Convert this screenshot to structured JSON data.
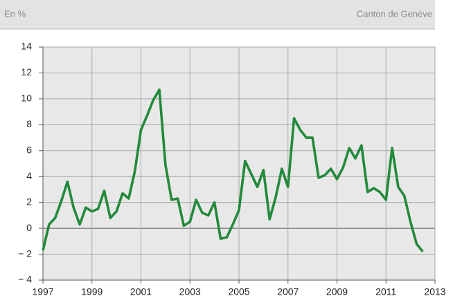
{
  "header": {
    "left": "En %",
    "right": "Canton de Genève"
  },
  "chart_data": {
    "type": "line",
    "x": [
      1997,
      1997.25,
      1997.5,
      1997.75,
      1998,
      1998.25,
      1998.5,
      1998.75,
      1999,
      1999.25,
      1999.5,
      1999.75,
      2000,
      2000.25,
      2000.5,
      2000.75,
      2001,
      2001.25,
      2001.5,
      2001.75,
      2002,
      2002.25,
      2002.5,
      2002.75,
      2003,
      2003.25,
      2003.5,
      2003.75,
      2004,
      2004.25,
      2004.5,
      2004.75,
      2005,
      2005.25,
      2005.5,
      2005.75,
      2006,
      2006.25,
      2006.5,
      2006.75,
      2007,
      2007.25,
      2007.5,
      2007.75,
      2008,
      2008.25,
      2008.5,
      2008.75,
      2009,
      2009.25,
      2009.5,
      2009.75,
      2010,
      2010.25,
      2010.5,
      2010.75,
      2011,
      2011.25,
      2011.5,
      2011.75,
      2012,
      2012.25,
      2012.5
    ],
    "series": [
      {
        "name": "Canton de Genève",
        "color": "#23893b",
        "values": [
          -1.7,
          0.3,
          0.8,
          2.1,
          3.6,
          1.6,
          0.3,
          1.6,
          1.3,
          1.5,
          2.9,
          0.8,
          1.3,
          2.7,
          2.3,
          4.4,
          7.6,
          8.7,
          9.9,
          10.7,
          4.9,
          2.2,
          2.3,
          0.2,
          0.5,
          2.2,
          1.2,
          1.0,
          2.0,
          -0.8,
          -0.7,
          0.3,
          1.4,
          5.2,
          4.2,
          3.2,
          4.5,
          0.7,
          2.4,
          4.6,
          3.2,
          8.5,
          7.6,
          7.0,
          7.0,
          3.9,
          4.1,
          4.6,
          3.8,
          4.7,
          6.2,
          5.4,
          6.4,
          2.8,
          3.1,
          2.8,
          2.2,
          6.2,
          3.2,
          2.5,
          0.5,
          -1.2,
          -1.8
        ]
      }
    ],
    "xlim": [
      1997,
      2013
    ],
    "xticks": [
      1997,
      1999,
      2001,
      2003,
      2005,
      2007,
      2009,
      2011,
      2013
    ],
    "ylim": [
      -4,
      14
    ],
    "yticks": [
      {
        "value": -4,
        "label": "− 4"
      },
      {
        "value": -2,
        "label": "− 2"
      },
      0,
      2,
      4,
      6,
      8,
      10,
      12,
      14
    ],
    "grid": true
  }
}
